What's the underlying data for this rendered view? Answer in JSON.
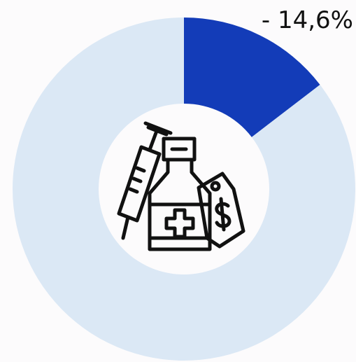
{
  "chart_data": {
    "type": "pie",
    "values": [
      14.6,
      85.4
    ],
    "value_labels": [
      "- 14,6%",
      null
    ],
    "colors": [
      "#133cb8",
      "#dbe8f5"
    ]
  }
}
